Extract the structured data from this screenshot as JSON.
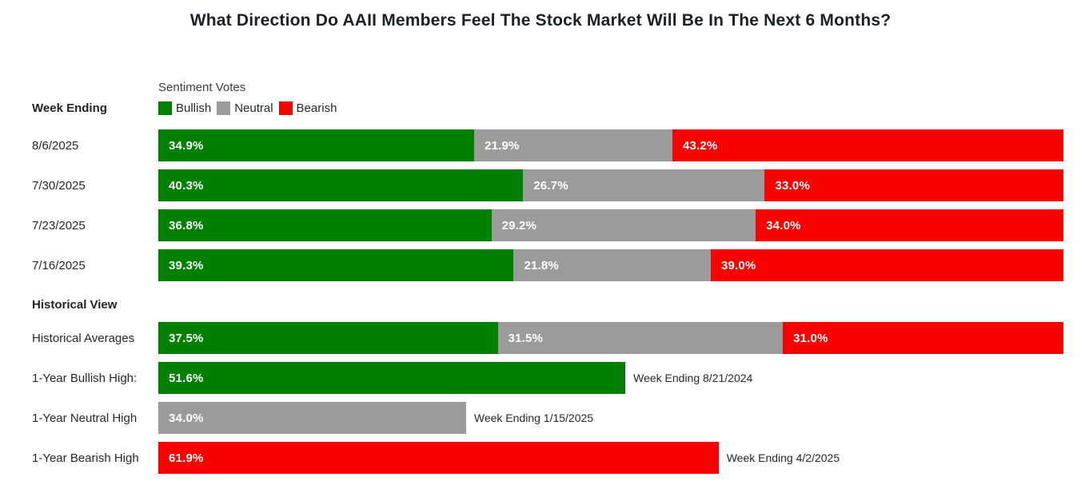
{
  "title": "What Direction Do AAII Members Feel The Stock Market Will Be In The Next 6 Months?",
  "colors": {
    "bullish": "#008000",
    "neutral": "#9b9b9b",
    "bearish": "#fc0000"
  },
  "header": {
    "week_ending_label": "Week Ending",
    "historical_label": "Historical View",
    "legend_title": "Sentiment Votes",
    "legend": [
      {
        "label": "Bullish"
      },
      {
        "label": "Neutral"
      },
      {
        "label": "Bearish"
      }
    ]
  },
  "chart_data": {
    "type": "bar",
    "orientation": "horizontal",
    "stacked": true,
    "unit": "percent",
    "series_names": [
      "Bullish",
      "Neutral",
      "Bearish"
    ],
    "weekly_rows": [
      {
        "label": "8/6/2025",
        "bullish": {
          "value": 34.9,
          "display": "34.9%"
        },
        "neutral": {
          "value": 21.9,
          "display": "21.9%"
        },
        "bearish": {
          "value": 43.2,
          "display": "43.2%"
        }
      },
      {
        "label": "7/30/2025",
        "bullish": {
          "value": 40.3,
          "display": "40.3%"
        },
        "neutral": {
          "value": 26.7,
          "display": "26.7%"
        },
        "bearish": {
          "value": 33.0,
          "display": "33.0%"
        }
      },
      {
        "label": "7/23/2025",
        "bullish": {
          "value": 36.8,
          "display": "36.8%"
        },
        "neutral": {
          "value": 29.2,
          "display": "29.2%"
        },
        "bearish": {
          "value": 34.0,
          "display": "34.0%"
        }
      },
      {
        "label": "7/16/2025",
        "bullish": {
          "value": 39.3,
          "display": "39.3%"
        },
        "neutral": {
          "value": 21.8,
          "display": "21.8%"
        },
        "bearish": {
          "value": 39.0,
          "display": "39.0%"
        }
      }
    ],
    "historical_average": {
      "label": "Historical Averages",
      "bullish": {
        "value": 37.5,
        "display": "37.5%"
      },
      "neutral": {
        "value": 31.5,
        "display": "31.5%"
      },
      "bearish": {
        "value": 31.0,
        "display": "31.0%"
      }
    },
    "extremes": [
      {
        "label": "1-Year Bullish High:",
        "series": "Bullish",
        "value": 51.6,
        "display": "51.6%",
        "note": "Week Ending 8/21/2024"
      },
      {
        "label": "1-Year Neutral High",
        "series": "Neutral",
        "value": 34.0,
        "display": "34.0%",
        "note": "Week Ending 1/15/2025"
      },
      {
        "label": "1-Year Bearish High",
        "series": "Bearish",
        "value": 61.9,
        "display": "61.9%",
        "note": "Week Ending 4/2/2025"
      }
    ]
  }
}
